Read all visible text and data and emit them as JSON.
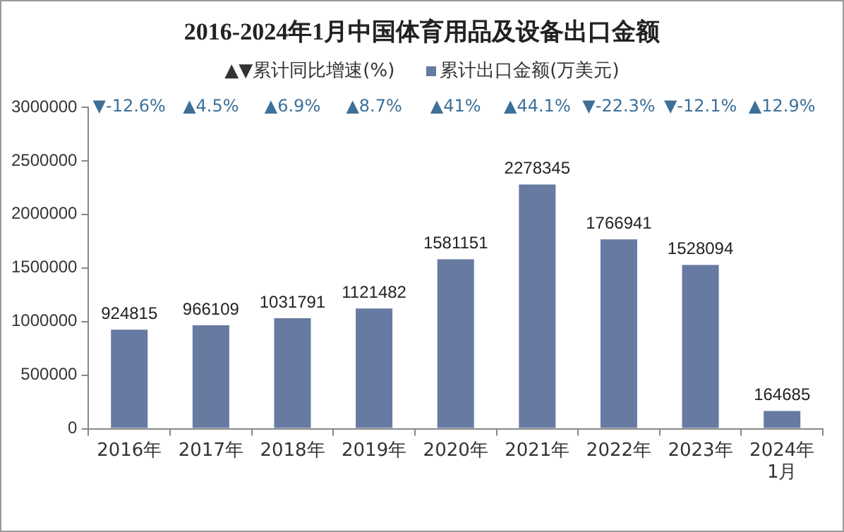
{
  "chart_data": {
    "type": "bar",
    "title": "2016-2024年1月中国体育用品及设备出口金额",
    "categories": [
      "2016年",
      "2017年",
      "2018年",
      "2019年",
      "2020年",
      "2021年",
      "2022年",
      "2023年",
      "2024年\n1月"
    ],
    "series": [
      {
        "name": "累计出口金额(万美元)",
        "color": "#677aa2",
        "values": [
          924815,
          966109,
          1031791,
          1121482,
          1581151,
          2278345,
          1766941,
          1528094,
          164685
        ]
      }
    ],
    "annotations": [
      "▲▼累计同比增速(%)",
      "▼-12.6%",
      "▲4.5%",
      "▲6.9%",
      "▲8.7%",
      "▲41%",
      "▲44.1%",
      "▼-22.3%",
      "▼-12.1%",
      "▲12.9%"
    ],
    "ylim": [
      0,
      3000000
    ],
    "yticks": [
      0,
      500000,
      1000000,
      1500000,
      2000000,
      2500000,
      3000000
    ],
    "grid": false,
    "legend": "top",
    "data_labels": true
  }
}
